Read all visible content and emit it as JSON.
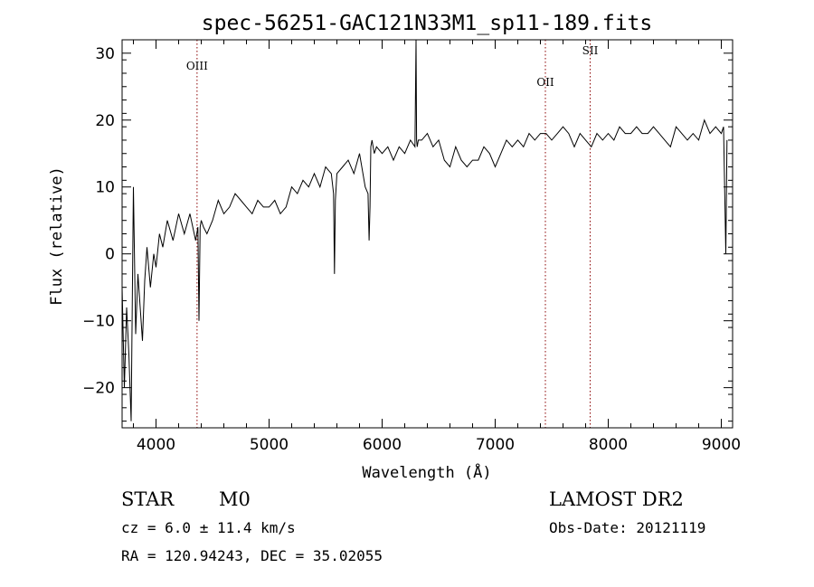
{
  "chart_data": {
    "type": "line",
    "title": "spec-56251-GAC121N33M1_sp11-189.fits",
    "xlabel": "Wavelength (Å)",
    "ylabel": "Flux (relative)",
    "xlim": [
      3700,
      9100
    ],
    "ylim": [
      -26,
      32
    ],
    "x_ticks": [
      4000,
      5000,
      6000,
      7000,
      8000,
      9000
    ],
    "y_ticks": [
      -20,
      -10,
      0,
      10,
      20,
      30
    ],
    "grid": false,
    "series": [
      {
        "x": [
          3700,
          3720,
          3740,
          3760,
          3780,
          3800,
          3820,
          3840,
          3860,
          3880,
          3900,
          3920,
          3950,
          3980,
          4000,
          4030,
          4060,
          4100,
          4150,
          4200,
          4250,
          4300,
          4350,
          4370,
          4380,
          4390,
          4400,
          4420,
          4450,
          4500,
          4550,
          4600,
          4650,
          4700,
          4750,
          4800,
          4850,
          4900,
          4950,
          5000,
          5050,
          5100,
          5150,
          5200,
          5250,
          5300,
          5350,
          5400,
          5450,
          5500,
          5550,
          5570,
          5578,
          5586,
          5600,
          5650,
          5700,
          5750,
          5800,
          5850,
          5875,
          5885,
          5893,
          5900,
          5910,
          5930,
          5950,
          6000,
          6050,
          6100,
          6150,
          6200,
          6250,
          6290,
          6300,
          6305,
          6310,
          6320,
          6350,
          6400,
          6450,
          6500,
          6550,
          6600,
          6650,
          6700,
          6750,
          6800,
          6850,
          6900,
          6950,
          7000,
          7050,
          7100,
          7150,
          7200,
          7250,
          7300,
          7350,
          7400,
          7450,
          7500,
          7550,
          7600,
          7650,
          7700,
          7750,
          7800,
          7850,
          7900,
          7950,
          8000,
          8050,
          8100,
          8150,
          8200,
          8250,
          8300,
          8350,
          8400,
          8450,
          8500,
          8550,
          8600,
          8650,
          8700,
          8750,
          8800,
          8850,
          8900,
          8950,
          9000,
          9020,
          9040,
          9050
        ],
        "y": [
          -5,
          -20,
          -8,
          -15,
          -25,
          10,
          -12,
          -3,
          -8,
          -13,
          -4,
          1,
          -5,
          0,
          -2,
          3,
          1,
          5,
          2,
          6,
          3,
          6,
          2,
          4,
          -10,
          4,
          5,
          4,
          3,
          5,
          8,
          6,
          7,
          9,
          8,
          7,
          6,
          8,
          7,
          7,
          8,
          6,
          7,
          10,
          9,
          11,
          10,
          12,
          10,
          13,
          12,
          9,
          -3,
          8,
          12,
          13,
          14,
          12,
          15,
          10,
          9,
          2,
          7,
          16,
          17,
          15,
          16,
          15,
          16,
          14,
          16,
          15,
          17,
          16,
          32,
          17,
          16,
          17,
          17,
          18,
          16,
          17,
          14,
          13,
          16,
          14,
          13,
          14,
          14,
          16,
          15,
          13,
          15,
          17,
          16,
          17,
          16,
          18,
          17,
          18,
          18,
          17,
          18,
          19,
          18,
          16,
          18,
          17,
          16,
          18,
          17,
          18,
          17,
          19,
          18,
          18,
          19,
          18,
          18,
          19,
          18,
          17,
          16,
          19,
          18,
          17,
          18,
          17,
          20,
          18,
          19,
          18,
          19,
          0,
          17
        ]
      }
    ],
    "annotations": [
      {
        "label": "OIII",
        "x": 4363
      },
      {
        "label": "OII",
        "x": 7444
      },
      {
        "label": "SII",
        "x": 7840
      }
    ]
  },
  "info": {
    "line1_left_a": "STAR",
    "line1_left_b": "M0",
    "line1_right": "LAMOST DR2",
    "line2_left": "cz = 6.0 ± 11.4 km/s",
    "line2_right": "Obs-Date: 20121119",
    "line3_left": "RA = 120.94243, DEC =  35.02055"
  },
  "colors": {
    "spectrum": "#000000",
    "emission_line_marker": "#8b0000"
  }
}
